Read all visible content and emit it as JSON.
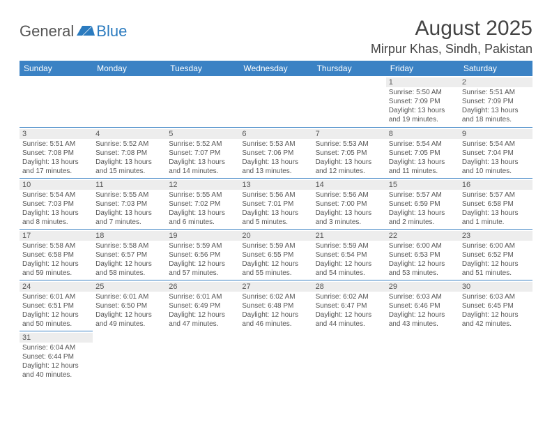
{
  "logo": {
    "general": "General",
    "blue": "Blue"
  },
  "title": {
    "month": "August 2025",
    "location": "Mirpur Khas, Sindh, Pakistan"
  },
  "colors": {
    "header_bg": "#3b82c4",
    "header_text": "#ffffff",
    "grid_line": "#3b82c4",
    "daynum_bg": "#ededed",
    "text_body": "#555555",
    "text_title": "#444444",
    "logo_accent": "#2b7bbf"
  },
  "daysOfWeek": [
    "Sunday",
    "Monday",
    "Tuesday",
    "Wednesday",
    "Thursday",
    "Friday",
    "Saturday"
  ],
  "weeks": [
    [
      null,
      null,
      null,
      null,
      null,
      {
        "n": "1",
        "sr": "Sunrise: 5:50 AM",
        "ss": "Sunset: 7:09 PM",
        "d1": "Daylight: 13 hours",
        "d2": "and 19 minutes."
      },
      {
        "n": "2",
        "sr": "Sunrise: 5:51 AM",
        "ss": "Sunset: 7:09 PM",
        "d1": "Daylight: 13 hours",
        "d2": "and 18 minutes."
      }
    ],
    [
      {
        "n": "3",
        "sr": "Sunrise: 5:51 AM",
        "ss": "Sunset: 7:08 PM",
        "d1": "Daylight: 13 hours",
        "d2": "and 17 minutes."
      },
      {
        "n": "4",
        "sr": "Sunrise: 5:52 AM",
        "ss": "Sunset: 7:08 PM",
        "d1": "Daylight: 13 hours",
        "d2": "and 15 minutes."
      },
      {
        "n": "5",
        "sr": "Sunrise: 5:52 AM",
        "ss": "Sunset: 7:07 PM",
        "d1": "Daylight: 13 hours",
        "d2": "and 14 minutes."
      },
      {
        "n": "6",
        "sr": "Sunrise: 5:53 AM",
        "ss": "Sunset: 7:06 PM",
        "d1": "Daylight: 13 hours",
        "d2": "and 13 minutes."
      },
      {
        "n": "7",
        "sr": "Sunrise: 5:53 AM",
        "ss": "Sunset: 7:05 PM",
        "d1": "Daylight: 13 hours",
        "d2": "and 12 minutes."
      },
      {
        "n": "8",
        "sr": "Sunrise: 5:54 AM",
        "ss": "Sunset: 7:05 PM",
        "d1": "Daylight: 13 hours",
        "d2": "and 11 minutes."
      },
      {
        "n": "9",
        "sr": "Sunrise: 5:54 AM",
        "ss": "Sunset: 7:04 PM",
        "d1": "Daylight: 13 hours",
        "d2": "and 10 minutes."
      }
    ],
    [
      {
        "n": "10",
        "sr": "Sunrise: 5:54 AM",
        "ss": "Sunset: 7:03 PM",
        "d1": "Daylight: 13 hours",
        "d2": "and 8 minutes."
      },
      {
        "n": "11",
        "sr": "Sunrise: 5:55 AM",
        "ss": "Sunset: 7:03 PM",
        "d1": "Daylight: 13 hours",
        "d2": "and 7 minutes."
      },
      {
        "n": "12",
        "sr": "Sunrise: 5:55 AM",
        "ss": "Sunset: 7:02 PM",
        "d1": "Daylight: 13 hours",
        "d2": "and 6 minutes."
      },
      {
        "n": "13",
        "sr": "Sunrise: 5:56 AM",
        "ss": "Sunset: 7:01 PM",
        "d1": "Daylight: 13 hours",
        "d2": "and 5 minutes."
      },
      {
        "n": "14",
        "sr": "Sunrise: 5:56 AM",
        "ss": "Sunset: 7:00 PM",
        "d1": "Daylight: 13 hours",
        "d2": "and 3 minutes."
      },
      {
        "n": "15",
        "sr": "Sunrise: 5:57 AM",
        "ss": "Sunset: 6:59 PM",
        "d1": "Daylight: 13 hours",
        "d2": "and 2 minutes."
      },
      {
        "n": "16",
        "sr": "Sunrise: 5:57 AM",
        "ss": "Sunset: 6:58 PM",
        "d1": "Daylight: 13 hours",
        "d2": "and 1 minute."
      }
    ],
    [
      {
        "n": "17",
        "sr": "Sunrise: 5:58 AM",
        "ss": "Sunset: 6:58 PM",
        "d1": "Daylight: 12 hours",
        "d2": "and 59 minutes."
      },
      {
        "n": "18",
        "sr": "Sunrise: 5:58 AM",
        "ss": "Sunset: 6:57 PM",
        "d1": "Daylight: 12 hours",
        "d2": "and 58 minutes."
      },
      {
        "n": "19",
        "sr": "Sunrise: 5:59 AM",
        "ss": "Sunset: 6:56 PM",
        "d1": "Daylight: 12 hours",
        "d2": "and 57 minutes."
      },
      {
        "n": "20",
        "sr": "Sunrise: 5:59 AM",
        "ss": "Sunset: 6:55 PM",
        "d1": "Daylight: 12 hours",
        "d2": "and 55 minutes."
      },
      {
        "n": "21",
        "sr": "Sunrise: 5:59 AM",
        "ss": "Sunset: 6:54 PM",
        "d1": "Daylight: 12 hours",
        "d2": "and 54 minutes."
      },
      {
        "n": "22",
        "sr": "Sunrise: 6:00 AM",
        "ss": "Sunset: 6:53 PM",
        "d1": "Daylight: 12 hours",
        "d2": "and 53 minutes."
      },
      {
        "n": "23",
        "sr": "Sunrise: 6:00 AM",
        "ss": "Sunset: 6:52 PM",
        "d1": "Daylight: 12 hours",
        "d2": "and 51 minutes."
      }
    ],
    [
      {
        "n": "24",
        "sr": "Sunrise: 6:01 AM",
        "ss": "Sunset: 6:51 PM",
        "d1": "Daylight: 12 hours",
        "d2": "and 50 minutes."
      },
      {
        "n": "25",
        "sr": "Sunrise: 6:01 AM",
        "ss": "Sunset: 6:50 PM",
        "d1": "Daylight: 12 hours",
        "d2": "and 49 minutes."
      },
      {
        "n": "26",
        "sr": "Sunrise: 6:01 AM",
        "ss": "Sunset: 6:49 PM",
        "d1": "Daylight: 12 hours",
        "d2": "and 47 minutes."
      },
      {
        "n": "27",
        "sr": "Sunrise: 6:02 AM",
        "ss": "Sunset: 6:48 PM",
        "d1": "Daylight: 12 hours",
        "d2": "and 46 minutes."
      },
      {
        "n": "28",
        "sr": "Sunrise: 6:02 AM",
        "ss": "Sunset: 6:47 PM",
        "d1": "Daylight: 12 hours",
        "d2": "and 44 minutes."
      },
      {
        "n": "29",
        "sr": "Sunrise: 6:03 AM",
        "ss": "Sunset: 6:46 PM",
        "d1": "Daylight: 12 hours",
        "d2": "and 43 minutes."
      },
      {
        "n": "30",
        "sr": "Sunrise: 6:03 AM",
        "ss": "Sunset: 6:45 PM",
        "d1": "Daylight: 12 hours",
        "d2": "and 42 minutes."
      }
    ],
    [
      {
        "n": "31",
        "sr": "Sunrise: 6:04 AM",
        "ss": "Sunset: 6:44 PM",
        "d1": "Daylight: 12 hours",
        "d2": "and 40 minutes."
      },
      null,
      null,
      null,
      null,
      null,
      null
    ]
  ]
}
